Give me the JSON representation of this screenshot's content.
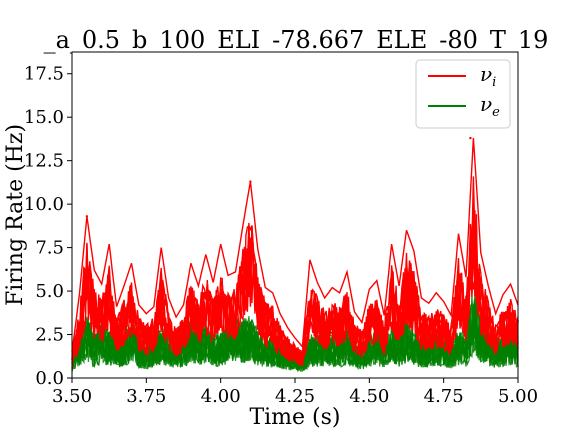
{
  "chart_data": {
    "type": "line",
    "title": "_a_0.5_b_100_ELI_-78.667_ELE_-80_T_19",
    "xlabel": "Time (s)",
    "ylabel": "Firing Rate (Hz)",
    "xlim": [
      3.5,
      5.0
    ],
    "ylim": [
      0,
      18.75
    ],
    "xticks": [
      3.5,
      3.75,
      4.0,
      4.25,
      4.5,
      4.75,
      5.0
    ],
    "xtick_labels": [
      "3.50",
      "3.75",
      "4.00",
      "4.25",
      "4.50",
      "4.75",
      "5.00"
    ],
    "yticks": [
      0.0,
      2.5,
      5.0,
      7.5,
      10.0,
      12.5,
      15.0,
      17.5
    ],
    "ytick_labels": [
      "0.0",
      "2.5",
      "5.0",
      "7.5",
      "10.0",
      "12.5",
      "15.0",
      "17.5"
    ],
    "grid": false,
    "legend_position": "top-right",
    "series": [
      {
        "name": "ν_i",
        "legend_label": "νi",
        "color": "#ff0000",
        "x": [
          3.5,
          3.525,
          3.55,
          3.575,
          3.6,
          3.625,
          3.65,
          3.675,
          3.7,
          3.725,
          3.75,
          3.775,
          3.8,
          3.825,
          3.85,
          3.875,
          3.9,
          3.925,
          3.95,
          3.975,
          4.0,
          4.025,
          4.05,
          4.075,
          4.1,
          4.125,
          4.15,
          4.175,
          4.2,
          4.225,
          4.25,
          4.275,
          4.3,
          4.325,
          4.35,
          4.375,
          4.4,
          4.425,
          4.45,
          4.475,
          4.5,
          4.525,
          4.55,
          4.575,
          4.6,
          4.625,
          4.65,
          4.675,
          4.7,
          4.725,
          4.75,
          4.775,
          4.8,
          4.825,
          4.85,
          4.875,
          4.9,
          4.925,
          4.95,
          4.975,
          5.0
        ],
        "values": [
          1.5,
          4.8,
          9.3,
          6.2,
          5.4,
          7.7,
          4.1,
          5.3,
          6.6,
          4.2,
          3.7,
          4.1,
          7.5,
          4.6,
          3.5,
          4.2,
          6.6,
          5.3,
          7.1,
          5.5,
          7.7,
          5.9,
          6.1,
          8.8,
          11.3,
          7.4,
          5.2,
          4.9,
          3.7,
          2.9,
          2.3,
          1.8,
          6.8,
          5.5,
          4.6,
          5.2,
          4.9,
          6.1,
          3.8,
          3.2,
          5.1,
          5.6,
          3.6,
          7.7,
          5.3,
          8.5,
          7.3,
          4.6,
          4.3,
          4.9,
          4.4,
          3.6,
          8.3,
          5.8,
          13.8,
          7.2,
          5.3,
          3.7,
          4.8,
          5.4,
          4.2
        ],
        "peaks": [
          {
            "x": 3.55,
            "y": 9.3
          },
          {
            "x": 4.1,
            "y": 11.3
          },
          {
            "x": 4.84,
            "y": 13.8
          }
        ]
      },
      {
        "name": "ν_e",
        "legend_label": "νe",
        "color": "#008000",
        "x": [
          3.5,
          3.525,
          3.55,
          3.575,
          3.6,
          3.625,
          3.65,
          3.675,
          3.7,
          3.725,
          3.75,
          3.775,
          3.8,
          3.825,
          3.85,
          3.875,
          3.9,
          3.925,
          3.95,
          3.975,
          4.0,
          4.025,
          4.05,
          4.075,
          4.1,
          4.125,
          4.15,
          4.175,
          4.2,
          4.225,
          4.25,
          4.275,
          4.3,
          4.325,
          4.35,
          4.375,
          4.4,
          4.425,
          4.45,
          4.475,
          4.5,
          4.525,
          4.55,
          4.575,
          4.6,
          4.625,
          4.65,
          4.675,
          4.7,
          4.725,
          4.75,
          4.775,
          4.8,
          4.825,
          4.85,
          4.875,
          4.9,
          4.925,
          4.95,
          4.975,
          5.0
        ],
        "values": [
          1.2,
          2.6,
          3.9,
          2.4,
          3.3,
          2.7,
          2.8,
          2.4,
          3.5,
          2.3,
          1.9,
          2.4,
          3.1,
          2.6,
          2.3,
          2.4,
          3.5,
          2.9,
          3.1,
          2.7,
          2.6,
          3.2,
          3.5,
          3.4,
          3.6,
          2.9,
          2.4,
          2.4,
          2.1,
          1.8,
          1.7,
          1.5,
          2.5,
          2.6,
          2.4,
          2.6,
          2.5,
          2.9,
          2.3,
          1.9,
          2.6,
          2.7,
          2.3,
          3.2,
          2.6,
          3.3,
          2.9,
          2.2,
          2.4,
          2.6,
          2.4,
          2.1,
          2.9,
          2.6,
          5.5,
          3.6,
          2.7,
          2.3,
          2.6,
          2.9,
          2.4
        ]
      }
    ]
  }
}
